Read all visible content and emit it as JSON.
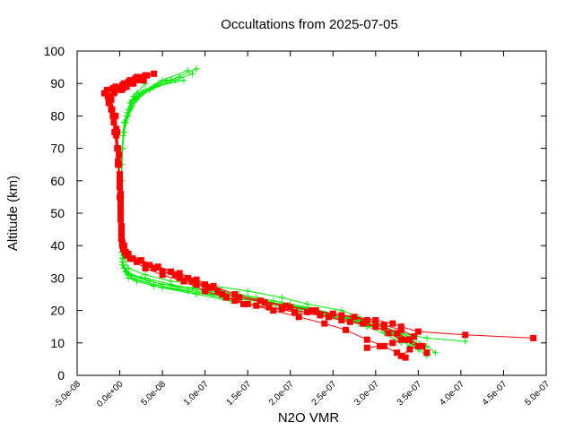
{
  "chart_data": {
    "type": "scatter",
    "title": "Occultations from 2025-07-05",
    "xlabel": "N2O VMR",
    "ylabel": "Altitude (km)",
    "xlim": [
      -5e-08,
      5e-07
    ],
    "ylim": [
      0,
      100
    ],
    "x_ticks": [
      -5e-08,
      0,
      5e-08,
      1e-07,
      1.5e-07,
      2e-07,
      2.5e-07,
      3e-07,
      3.5e-07,
      4e-07,
      4.5e-07,
      5e-07
    ],
    "x_tick_labels": [
      "-5.0e-08",
      "0.0e+00",
      "5.0e-08",
      "1.0e-07",
      "1.5e-07",
      "2.0e-07",
      "2.5e-07",
      "3.0e-07",
      "3.5e-07",
      "4.0e-07",
      "4.5e-07",
      "5.0e-07"
    ],
    "y_ticks": [
      0,
      10,
      20,
      30,
      40,
      50,
      60,
      70,
      80,
      90,
      100
    ],
    "y_tick_labels": [
      "0",
      "10",
      "20",
      "30",
      "40",
      "50",
      "60",
      "70",
      "80",
      "90",
      "100"
    ],
    "grid": false,
    "legend": "none",
    "series": [
      {
        "color": "#00ee00",
        "marker": "plus",
        "line": true,
        "profiles": [
          {
            "x": [
              3.6e-07,
              3.5e-07,
              3.3e-07,
              3e-07,
              2.7e-07,
              2.4e-07,
              2e-07,
              1.6e-07,
              1.2e-07,
              8e-08,
              4e-08,
              1.5e-08,
              5e-09,
              3e-09,
              2e-09,
              2e-09,
              2e-09,
              2e-09,
              3e-09,
              5e-09,
              1e-08,
              1.5e-08,
              3e-08,
              5e-08,
              8e-08
            ],
            "y": [
              6,
              8,
              12,
              15,
              17,
              19,
              21,
              23,
              24,
              26,
              28,
              30,
              33,
              36,
              40,
              45,
              50,
              60,
              70,
              78,
              82,
              85,
              88,
              91,
              94
            ]
          },
          {
            "x": [
              3.7e-07,
              3.6e-07,
              3.4e-07,
              3.1e-07,
              2.8e-07,
              2.5e-07,
              2.1e-07,
              1.7e-07,
              1.3e-07,
              9e-08,
              5e-08,
              2e-08,
              6e-09,
              3e-09,
              2e-09,
              2e-09,
              2e-09,
              3e-09,
              6e-09,
              1.2e-08,
              1.8e-08,
              3.5e-08,
              6e-08,
              9e-08
            ],
            "y": [
              7,
              9,
              12,
              14,
              16,
              18,
              20,
              22,
              23,
              25,
              27,
              29,
              32,
              36,
              42,
              50,
              60,
              70,
              78,
              82,
              85,
              88,
              91,
              94.5
            ]
          },
          {
            "x": [
              3.5e-07,
              3.4e-07,
              3.2e-07,
              2.9e-07,
              2.6e-07,
              2.3e-07,
              1.9e-07,
              1.5e-07,
              1.1e-07,
              7e-08,
              3.5e-08,
              1.2e-08,
              4e-09,
              2e-09,
              2e-09,
              2e-09,
              2e-09,
              4e-09,
              8e-09,
              1.3e-08,
              2.5e-08,
              4.5e-08,
              7e-08
            ],
            "y": [
              8,
              10,
              13,
              16,
              18,
              20,
              22,
              24,
              25,
              27,
              29,
              31,
              34,
              38,
              45,
              55,
              65,
              75,
              80,
              84,
              87,
              90,
              92
            ]
          },
          {
            "x": [
              3.4e-07,
              3.3e-07,
              3.1e-07,
              2.8e-07,
              2.5e-07,
              2.2e-07,
              1.8e-07,
              1.4e-07,
              1e-07,
              6e-08,
              3e-08,
              1e-08,
              3e-09,
              2e-09,
              2e-09,
              2e-09,
              3e-09,
              7e-09,
              1.4e-08,
              2.2e-08,
              4e-08,
              7.5e-08
            ],
            "y": [
              9,
              11,
              14,
              17,
              19,
              21,
              23,
              25,
              26,
              28,
              30,
              31,
              35,
              40,
              50,
              60,
              70,
              78,
              83,
              86,
              89,
              91
            ]
          },
          {
            "x": [
              3.6e-07,
              3.45e-07,
              3.25e-07,
              3e-07,
              2.8e-07,
              2.6e-07,
              2.2e-07,
              1.9e-07,
              1.5e-07,
              1e-07,
              6e-08,
              3e-08,
              1e-08,
              4e-09,
              2e-09,
              2e-09,
              2e-09,
              5e-09,
              1e-08,
              2e-08,
              3.5e-08,
              6.5e-08,
              8.5e-08
            ],
            "y": [
              7,
              10,
              12,
              15,
              18,
              20,
              22,
              24,
              26,
              28,
              29,
              31,
              33,
              37,
              45,
              55,
              65,
              75,
              80,
              85,
              88,
              91,
              93
            ]
          },
          {
            "x": [
              3.3e-07,
              3.1e-07,
              2.9e-07,
              2.6e-07,
              2.3e-07,
              2e-07,
              1.6e-07,
              1.2e-07,
              8.5e-08,
              5e-08,
              2.5e-08,
              8e-09,
              3e-09,
              2e-09,
              2e-09,
              3e-09,
              6e-09,
              1.2e-08,
              2e-08,
              4e-08,
              5.5e-08
            ],
            "y": [
              10,
              13,
              15,
              18,
              20,
              22,
              24,
              26,
              27,
              28,
              30,
              32,
              35,
              42,
              55,
              70,
              78,
              84,
              87,
              89,
              91
            ]
          },
          {
            "x": [
              4.05e-07,
              3.6e-07,
              3.3e-07,
              3e-07,
              2.7e-07,
              2.3e-07,
              1.9e-07,
              1.4e-07,
              9e-08,
              4e-08,
              1e-08,
              3e-09,
              2e-09,
              2e-09,
              4e-09,
              9e-09,
              1.6e-08,
              3e-08
            ],
            "y": [
              10.5,
              11.5,
              13,
              16,
              18,
              20,
              22,
              24,
              25.5,
              27.5,
              30,
              34,
              45,
              60,
              74,
              81,
              86,
              90
            ]
          }
        ]
      },
      {
        "color": "#ff0000",
        "marker": "square",
        "line": true,
        "profiles": [
          {
            "x": [
              3.3e-07,
              3.4e-07,
              3.5e-07,
              3.3e-07,
              3.15e-07,
              3e-07,
              2.7e-07,
              2.45e-07,
              2.2e-07,
              1.9e-07,
              1.6e-07,
              1.35e-07,
              1.2e-07,
              1e-07,
              8e-08,
              6e-08,
              3.5e-08,
              1.5e-08,
              6e-09,
              3e-09,
              2e-09,
              1e-09,
              1e-09,
              1e-09,
              0,
              -1e-09,
              -2e-09,
              -3e-09,
              -5e-09,
              -1e-08,
              -1.5e-08,
              -5e-09,
              5e-09,
              1.2e-08,
              2e-08,
              3e-08,
              4e-08
            ],
            "y": [
              6,
              8,
              9,
              11,
              13,
              15,
              16.5,
              18,
              19.5,
              20.5,
              21.5,
              23,
              25,
              28,
              30,
              32,
              34,
              36,
              38,
              40,
              44,
              48,
              52,
              56,
              60,
              65,
              70,
              75,
              80,
              85,
              88,
              89,
              90,
              91,
              92,
              92.5,
              93
            ]
          },
          {
            "x": [
              3.6e-07,
              3.55e-07,
              3.4e-07,
              3.25e-07,
              3.1e-07,
              2.85e-07,
              2.6e-07,
              2.35e-07,
              2.05e-07,
              1.75e-07,
              1.45e-07,
              1.25e-07,
              1.05e-07,
              8.5e-08,
              6.5e-08,
              4e-08,
              2e-08,
              8e-09,
              4e-09,
              2e-09,
              2e-09,
              1e-09,
              0,
              -2e-09,
              -4e-09,
              -8e-09,
              -1.2e-08,
              -1.8e-08,
              -8e-09,
              3e-09,
              1e-08,
              1.8e-08,
              2.6e-08
            ],
            "y": [
              7,
              9,
              11,
              13,
              15,
              16,
              17,
              18.5,
              19.5,
              21,
              22,
              24,
              27,
              29,
              31,
              33,
              35,
              37,
              39,
              42,
              46,
              50,
              58,
              66,
              74,
              80,
              84,
              87,
              88.5,
              89.5,
              90.5,
              91.5,
              92
            ]
          },
          {
            "x": [
              4.85e-07,
              4.05e-07,
              3.5e-07,
              3.3e-07,
              3.2e-07,
              3e-07,
              2.75e-07,
              2.5e-07,
              2.25e-07,
              1.95e-07,
              1.65e-07,
              1.35e-07,
              1.1e-07,
              9e-08,
              7e-08,
              4.5e-08,
              2.5e-08,
              1e-08,
              5e-09,
              2e-09,
              1e-09,
              0,
              -1e-09,
              -4e-09,
              -9e-09,
              -1.4e-08,
              -6e-09,
              4e-09,
              1.4e-08,
              2.4e-08,
              3.2e-08
            ],
            "y": [
              11.5,
              12.5,
              13.5,
              15,
              16,
              17,
              18,
              19,
              20,
              21.5,
              23,
              25,
              27.5,
              29.5,
              31.5,
              33.5,
              35.5,
              37.5,
              40,
              45,
              52,
              60,
              68,
              76,
              82,
              86,
              87.5,
              88.5,
              90,
              91,
              92.5
            ]
          },
          {
            "x": [
              3.35e-07,
              3.25e-07,
              3.1e-07,
              2.9e-07,
              2.65e-07,
              2.4e-07,
              2.1e-07,
              1.8e-07,
              1.5e-07,
              1.25e-07,
              1e-07,
              7.5e-08,
              5e-08,
              3e-08,
              1.2e-08,
              5e-09,
              2e-09,
              1e-09,
              0,
              -2e-09,
              -6e-09,
              -1e-08
            ],
            "y": [
              5.5,
              7,
              9,
              11,
              14,
              16,
              18,
              20,
              22,
              24,
              26,
              29,
              31,
              33,
              36,
              39,
              43,
              48,
              55,
              65,
              75,
              82
            ]
          },
          {
            "x": [
              2.9e-07,
              3.05e-07,
              3.2e-07,
              3.35e-07,
              3.45e-07,
              3.3e-07,
              3.1e-07,
              2.9e-07,
              2.6e-07,
              2.3e-07,
              2e-07,
              1.7e-07,
              1.4e-07,
              1.15e-07,
              9e-08,
              7e-08,
              5e-08,
              3e-08,
              1.5e-08,
              7e-09,
              3e-09,
              2e-09,
              1e-09,
              0,
              -3e-09,
              -7e-09,
              -1.3e-08,
              -7e-09,
              2e-09,
              8e-09,
              1.6e-08,
              2.8e-08
            ],
            "y": [
              8.5,
              9,
              10,
              11,
              12,
              14,
              15.5,
              17,
              18.5,
              20,
              21,
              22.5,
              24,
              26,
              28,
              30,
              32,
              34,
              36,
              38,
              41,
              46,
              54,
              62,
              70,
              78,
              84,
              87,
              88,
              89,
              90,
              91
            ]
          }
        ]
      }
    ]
  }
}
